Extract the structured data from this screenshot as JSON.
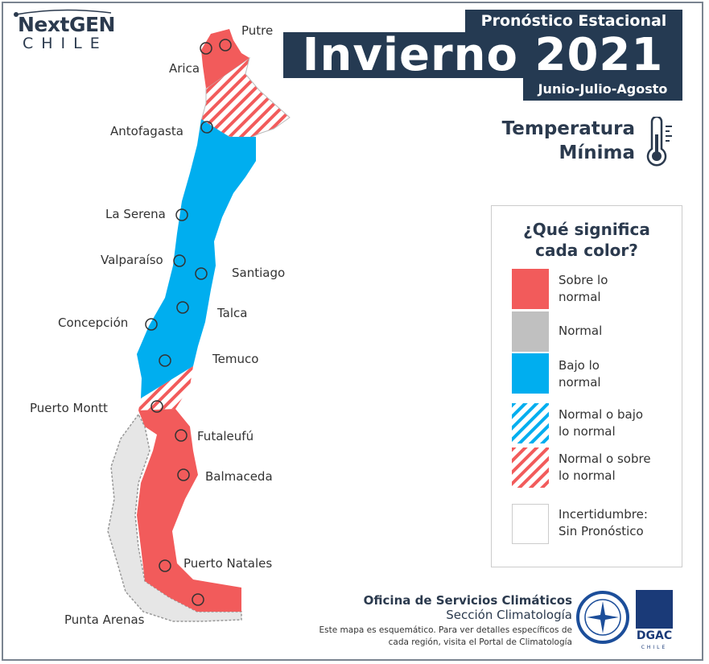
{
  "logo": {
    "line1": "NextGEN",
    "line2": "CHILE"
  },
  "header": {
    "kicker": "Pronóstico Estacional",
    "title": "Invierno 2021",
    "subtitle": "Junio-Julio-Agosto"
  },
  "variable": {
    "line1": "Temperatura",
    "line2": "Mínima",
    "icon": "thermometer-icon"
  },
  "legend": {
    "heading_line1": "¿Qué significa",
    "heading_line2": "cada color?",
    "items": [
      {
        "line1": "Sobre lo",
        "line2": "normal",
        "color": "#f25b5b",
        "pattern": "solid"
      },
      {
        "line1": "Normal",
        "line2": "",
        "color": "#c0c0c0",
        "pattern": "solid"
      },
      {
        "line1": "Bajo lo",
        "line2": "normal",
        "color": "#00aeef",
        "pattern": "solid"
      },
      {
        "line1": "Normal o bajo",
        "line2": "lo normal",
        "color": "#00aeef",
        "pattern": "hatched"
      },
      {
        "line1": "Normal o sobre",
        "line2": "lo normal",
        "color": "#f25b5b",
        "pattern": "hatched"
      },
      {
        "line1": "Incertidumbre:",
        "line2": "Sin Pronóstico",
        "color": "#ffffff",
        "pattern": "solid"
      }
    ]
  },
  "cities": [
    {
      "name": "Putre",
      "category": "Sobre lo normal"
    },
    {
      "name": "Arica",
      "category": "Sobre lo normal"
    },
    {
      "name": "Antofagasta",
      "category": "Bajo lo normal"
    },
    {
      "name": "La Serena",
      "category": "Bajo lo normal"
    },
    {
      "name": "Valparaíso",
      "category": "Bajo lo normal"
    },
    {
      "name": "Santiago",
      "category": "Bajo lo normal"
    },
    {
      "name": "Talca",
      "category": "Bajo lo normal"
    },
    {
      "name": "Concepción",
      "category": "Bajo lo normal"
    },
    {
      "name": "Temuco",
      "category": "Bajo lo normal"
    },
    {
      "name": "Puerto Montt",
      "category": "Normal o sobre lo normal"
    },
    {
      "name": "Futaleufú",
      "category": "Sobre lo normal"
    },
    {
      "name": "Balmaceda",
      "category": "Sobre lo normal"
    },
    {
      "name": "Puerto Natales",
      "category": "Sobre lo normal"
    },
    {
      "name": "Punta Arenas",
      "category": "Sobre lo normal"
    }
  ],
  "footer": {
    "office": "Oficina de Servicios Climáticos",
    "section": "Sección Climatología",
    "note_line1": "Este mapa es esquemático. Para ver detalles específicos de",
    "note_line2": "cada región, visita el Portal de Climatología",
    "dgac": "DGAC",
    "dgac_sub": "CHILE"
  }
}
